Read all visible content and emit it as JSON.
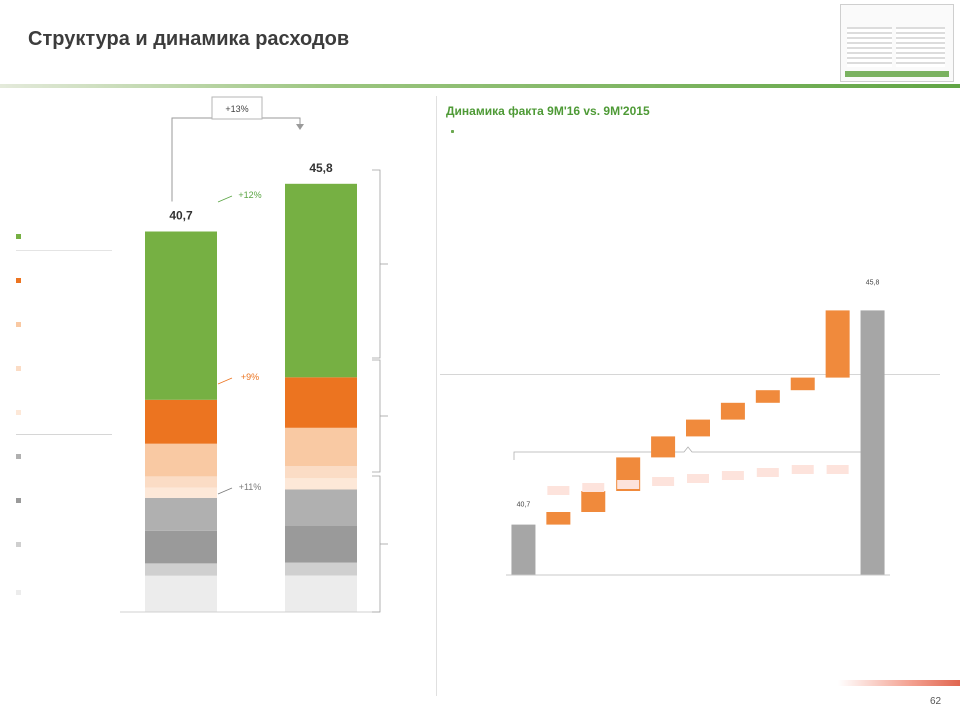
{
  "header": {
    "title": "Структура и динамика расходов",
    "subtitle": "",
    "nav_tag": ""
  },
  "footer": {
    "note": "",
    "page": "62"
  },
  "legend": [
    {
      "label": "",
      "color": "#76b043"
    },
    {
      "label": "",
      "color": "#ec7420"
    },
    {
      "label": "",
      "color": "#f9c9a3"
    },
    {
      "label": "",
      "color": "#fbdcc5"
    },
    {
      "label": "",
      "color": "#fde8d8"
    },
    {
      "label": "",
      "color": "#b0b0b0"
    },
    {
      "label": "",
      "color": "#9a9a9a"
    },
    {
      "label": "",
      "color": "#cfcfcf"
    },
    {
      "label": "",
      "color": "#ececec"
    }
  ],
  "chart_data": [
    {
      "type": "bar",
      "stacked": true,
      "categories": [
        "",
        ""
      ],
      "totals": [
        "40,7",
        "45,8"
      ],
      "ylim": [
        0,
        48
      ],
      "series": [
        {
          "name": "",
          "color": "#ececec",
          "values": [
            3.9,
            3.9
          ],
          "labels": [
            "",
            ""
          ]
        },
        {
          "name": "",
          "color": "#cfcfcf",
          "values": [
            1.3,
            1.4
          ],
          "labels": [
            "",
            ""
          ]
        },
        {
          "name": "",
          "color": "#9a9a9a",
          "values": [
            3.5,
            3.9
          ],
          "labels": [
            "",
            ""
          ]
        },
        {
          "name": "",
          "color": "#b0b0b0",
          "values": [
            3.5,
            3.9
          ],
          "labels": [
            "",
            ""
          ]
        },
        {
          "name": "",
          "color": "#fde8d8",
          "values": [
            1.1,
            1.2
          ],
          "labels": [
            "",
            ""
          ]
        },
        {
          "name": "",
          "color": "#fbdcc5",
          "values": [
            1.2,
            1.3
          ],
          "labels": [
            "",
            ""
          ]
        },
        {
          "name": "",
          "color": "#f9c9a3",
          "values": [
            3.5,
            4.1
          ],
          "labels": [
            "",
            ""
          ]
        },
        {
          "name": "",
          "color": "#ec7420",
          "values": [
            4.7,
            5.4
          ],
          "labels": [
            "",
            ""
          ]
        },
        {
          "name": "",
          "color": "#76b043",
          "values": [
            18.0,
            20.7
          ],
          "labels": [
            "",
            ""
          ]
        }
      ],
      "annotations": {
        "total_change": "+13%",
        "group_changes": [
          {
            "label": "+12%",
            "color": "#5aa543"
          },
          {
            "label": "+9%",
            "color": "#ec7420"
          },
          {
            "label": "+11%",
            "color": "#7a7a7a"
          }
        ],
        "brackets": [
          {
            "label": "",
            "color": "#5aa543"
          },
          {
            "label": "",
            "color": "#ec7420"
          },
          {
            "label": "",
            "color": "#7a7a7a"
          }
        ]
      }
    },
    {
      "type": "waterfall",
      "title": "",
      "subtitle": "",
      "start": {
        "label": "",
        "value": 40.7,
        "text": "40,7"
      },
      "end": {
        "label": "",
        "value": 45.8,
        "text": "45,8"
      },
      "ylim": [
        0,
        48
      ],
      "steps": [
        {
          "label": "",
          "value": 0.3,
          "text": ""
        },
        {
          "label": "",
          "value": 0.5,
          "text": ""
        },
        {
          "label": "",
          "value": 0.8,
          "text": ""
        },
        {
          "label": "",
          "value": 0.5,
          "text": ""
        },
        {
          "label": "",
          "value": 0.4,
          "text": ""
        },
        {
          "label": "",
          "value": 0.4,
          "text": ""
        },
        {
          "label": "",
          "value": 0.3,
          "text": ""
        },
        {
          "label": "",
          "value": 0.3,
          "text": ""
        },
        {
          "label": "",
          "value": 1.6,
          "text": ""
        }
      ]
    }
  ],
  "panel": {
    "title": "Динамика факта 9М'16 vs. 9М'2015",
    "intro": "",
    "bullets": [
      "",
      "",
      "",
      ""
    ],
    "outro": "",
    "link": ""
  }
}
